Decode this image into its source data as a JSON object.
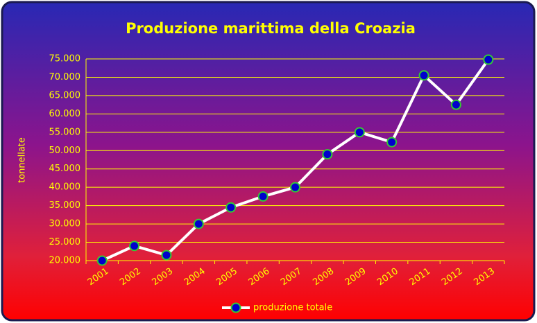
{
  "chart_data": {
    "type": "line",
    "title": "Produzione marittima della Croazia",
    "y_label": "tonnellate",
    "categories": [
      "2001",
      "2002",
      "2003",
      "2004",
      "2005",
      "2006",
      "2007",
      "2008",
      "2009",
      "2010",
      "2011",
      "2012",
      "2013"
    ],
    "series": [
      {
        "name": "produzione totale",
        "color": "#ffffff",
        "marker_color": "#0000cc",
        "marker_edge": "#33cc33",
        "values": [
          20000,
          24000,
          21500,
          30000,
          34500,
          37500,
          40000,
          49000,
          55000,
          52300,
          70500,
          62500,
          74800
        ]
      }
    ],
    "ylim": [
      20000,
      75000
    ],
    "yticks": [
      {
        "value": 20000,
        "label": "20.000"
      },
      {
        "value": 25000,
        "label": "25.000"
      },
      {
        "value": 30000,
        "label": "30.000"
      },
      {
        "value": 35000,
        "label": "35.000"
      },
      {
        "value": 40000,
        "label": "40.000"
      },
      {
        "value": 45000,
        "label": "45.000"
      },
      {
        "value": 50000,
        "label": "50.000"
      },
      {
        "value": 55000,
        "label": "55.000"
      },
      {
        "value": 60000,
        "label": "60.000"
      },
      {
        "value": 65000,
        "label": "65.000"
      },
      {
        "value": 70000,
        "label": "70.000"
      },
      {
        "value": 75000,
        "label": "75.000"
      }
    ],
    "grid": true,
    "legend": "bottom"
  }
}
